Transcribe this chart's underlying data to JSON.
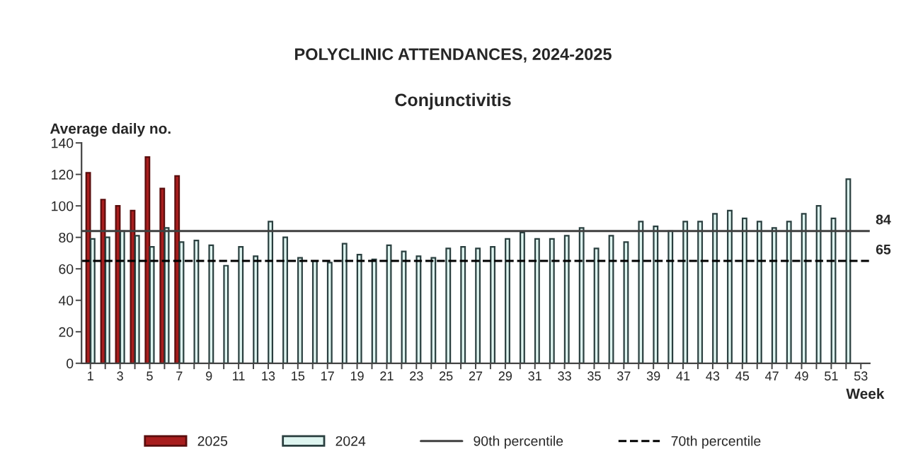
{
  "chart_data": {
    "type": "bar",
    "title": "POLYCLINIC ATTENDANCES, 2024-2025",
    "subtitle": "Conjunctivitis",
    "ylabel": "Average daily no.",
    "xlabel": "Week",
    "categories": [
      "1",
      null,
      "3",
      null,
      "5",
      null,
      "7",
      null,
      "9",
      null,
      "11",
      null,
      "13",
      null,
      "15",
      null,
      "17",
      null,
      "19",
      null,
      "21",
      null,
      "23",
      null,
      "25",
      null,
      "27",
      null,
      "29",
      null,
      "31",
      null,
      "33",
      null,
      "35",
      null,
      "37",
      null,
      "39",
      null,
      "41",
      null,
      "43",
      null,
      "45",
      null,
      "47",
      null,
      "49",
      null,
      "51",
      null,
      "53"
    ],
    "series": [
      {
        "name": "2025",
        "color": "#a81e1e",
        "values": [
          121,
          104,
          100,
          97,
          131,
          111,
          119,
          null,
          null,
          null,
          null,
          null,
          null,
          null,
          null,
          null,
          null,
          null,
          null,
          null,
          null,
          null,
          null,
          null,
          null,
          null,
          null,
          null,
          null,
          null,
          null,
          null,
          null,
          null,
          null,
          null,
          null,
          null,
          null,
          null,
          null,
          null,
          null,
          null,
          null,
          null,
          null,
          null,
          null,
          null,
          null,
          null,
          null
        ]
      },
      {
        "name": "2024",
        "color": "#def5f0",
        "values": [
          79,
          80,
          84,
          81,
          74,
          86,
          77,
          78,
          75,
          62,
          74,
          68,
          90,
          80,
          67,
          65,
          64,
          76,
          69,
          66,
          75,
          71,
          68,
          67,
          73,
          74,
          73,
          74,
          79,
          83,
          79,
          79,
          81,
          86,
          73,
          81,
          77,
          90,
          87,
          84,
          90,
          90,
          95,
          97,
          92,
          90,
          86,
          90,
          95,
          100,
          92,
          117,
          null
        ]
      }
    ],
    "ylim": [
      0,
      140
    ],
    "yticks": [
      0,
      20,
      40,
      60,
      80,
      100,
      120,
      140
    ],
    "ref_lines": [
      {
        "axis": "y",
        "value": 84,
        "label": "90th percentile",
        "color": "#404040",
        "line_style": "solid"
      },
      {
        "axis": "y",
        "value": 65,
        "label": "70th percentile",
        "color": "#000000",
        "line_style": "dashed"
      }
    ],
    "annotations": [
      "84",
      "65"
    ],
    "grid": false,
    "legend": "bottom"
  }
}
